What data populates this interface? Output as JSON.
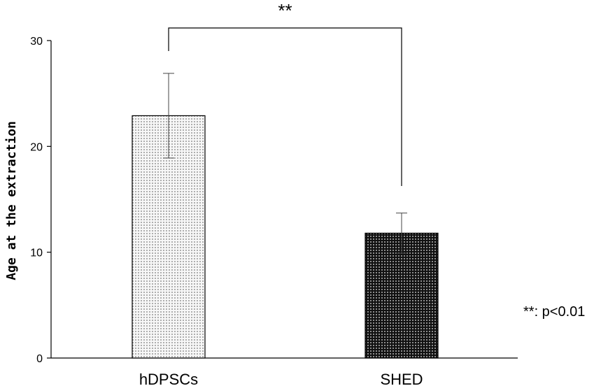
{
  "chart_data": {
    "type": "bar",
    "title": "",
    "xlabel": "",
    "ylabel": "Age at the extraction",
    "ylim": [
      0,
      30
    ],
    "yticks": [
      0,
      10,
      20,
      30
    ],
    "categories": [
      "hDPSCs",
      "SHED"
    ],
    "values": [
      22.9,
      11.8
    ],
    "errors": [
      4.0,
      1.9
    ],
    "fill_patterns": [
      "light-dots",
      "dark-dots"
    ],
    "grid": false,
    "significance": {
      "mark": "**",
      "between": [
        "hDPSCs",
        "SHED"
      ]
    },
    "annotation": "**: p<0.01"
  }
}
